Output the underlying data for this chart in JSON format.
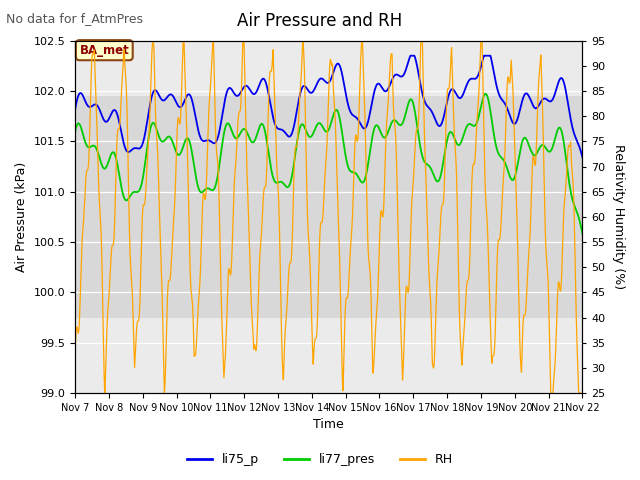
{
  "title": "Air Pressure and RH",
  "subtitle": "No data for f_AtmPres",
  "xlabel": "Time",
  "ylabel_left": "Air Pressure (kPa)",
  "ylabel_right": "Relativity Humidity (%)",
  "ylim_left": [
    99.0,
    102.5
  ],
  "ylim_right": [
    25,
    95
  ],
  "yticks_left": [
    99.0,
    99.5,
    100.0,
    100.5,
    101.0,
    101.5,
    102.0,
    102.5
  ],
  "yticks_right": [
    25,
    30,
    35,
    40,
    45,
    50,
    55,
    60,
    65,
    70,
    75,
    80,
    85,
    90,
    95
  ],
  "xtick_labels": [
    "Nov 7",
    "Nov 8",
    "Nov 9",
    "Nov 10",
    "Nov 11",
    "Nov 12",
    "Nov 13",
    "Nov 14",
    "Nov 15",
    "Nov 16",
    "Nov 17",
    "Nov 18",
    "Nov 19",
    "Nov 20",
    "Nov 21",
    "Nov 22"
  ],
  "background_color": "#ffffff",
  "plot_bg_color": "#ebebeb",
  "band_color": "#d8d8d8",
  "band_ylim": [
    99.75,
    101.95
  ],
  "legend_entries": [
    "li75_p",
    "li77_pres",
    "RH"
  ],
  "colors": {
    "li75_p": "#0000ee",
    "li77_pres": "#00cc00",
    "RH": "#ffa500"
  },
  "annotation_text": "BA_met",
  "title_fontsize": 12,
  "subtitle_fontsize": 9,
  "axis_fontsize": 9,
  "tick_fontsize": 8
}
